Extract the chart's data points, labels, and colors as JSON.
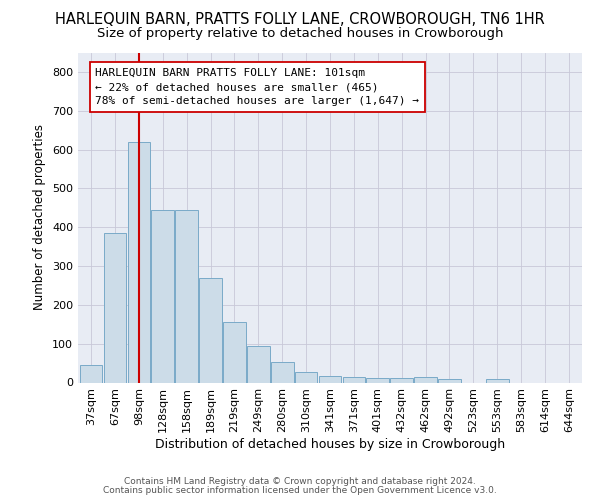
{
  "title": "HARLEQUIN BARN, PRATTS FOLLY LANE, CROWBOROUGH, TN6 1HR",
  "subtitle": "Size of property relative to detached houses in Crowborough",
  "xlabel": "Distribution of detached houses by size in Crowborough",
  "ylabel": "Number of detached properties",
  "footnote1": "Contains HM Land Registry data © Crown copyright and database right 2024.",
  "footnote2": "Contains public sector information licensed under the Open Government Licence v3.0.",
  "bar_labels": [
    "37sqm",
    "67sqm",
    "98sqm",
    "128sqm",
    "158sqm",
    "189sqm",
    "219sqm",
    "249sqm",
    "280sqm",
    "310sqm",
    "341sqm",
    "371sqm",
    "401sqm",
    "432sqm",
    "462sqm",
    "492sqm",
    "523sqm",
    "553sqm",
    "583sqm",
    "614sqm",
    "644sqm"
  ],
  "bar_values": [
    45,
    385,
    620,
    445,
    445,
    270,
    155,
    95,
    52,
    28,
    17,
    15,
    12,
    12,
    15,
    8,
    0,
    8,
    0,
    0,
    0
  ],
  "bar_color": "#ccdce8",
  "bar_edge_color": "#7aaac8",
  "vline_x_index": 2,
  "vline_color": "#cc0000",
  "annotation_line1": "HARLEQUIN BARN PRATTS FOLLY LANE: 101sqm",
  "annotation_line2": "← 22% of detached houses are smaller (465)",
  "annotation_line3": "78% of semi-detached houses are larger (1,647) →",
  "ylim": [
    0,
    850
  ],
  "yticks": [
    0,
    100,
    200,
    300,
    400,
    500,
    600,
    700,
    800
  ],
  "grid_color": "#c8c8d8",
  "bg_color": "#e8ecf4",
  "title_fontsize": 10.5,
  "subtitle_fontsize": 9.5,
  "xlabel_fontsize": 9,
  "ylabel_fontsize": 8.5,
  "tick_fontsize": 8,
  "annot_fontsize": 8,
  "footnote_fontsize": 6.5
}
